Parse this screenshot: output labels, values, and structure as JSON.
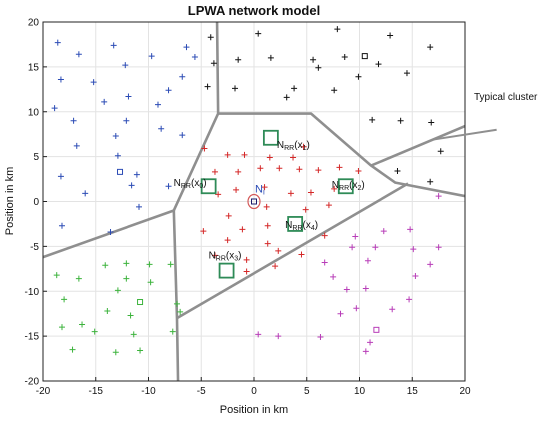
{
  "chart_data": {
    "type": "scatter",
    "title": "LPWA network model",
    "xlabel": "Position in km",
    "ylabel": "Position in km",
    "xlim": [
      -20,
      20
    ],
    "ylim": [
      -20,
      20
    ],
    "xticks": [
      -20,
      -15,
      -10,
      -5,
      0,
      5,
      10,
      15,
      20
    ],
    "yticks": [
      -20,
      -15,
      -10,
      -5,
      0,
      5,
      10,
      15,
      20
    ],
    "grid": true,
    "annotation": "Typical cluster",
    "series": [
      {
        "color": "#2b4bb5",
        "marker": "plus",
        "points": [
          [
            -18.6,
            17.7
          ],
          [
            -16.6,
            16.4
          ],
          [
            -13.3,
            17.4
          ],
          [
            -6.4,
            17.2
          ],
          [
            -18.3,
            13.6
          ],
          [
            -15.2,
            13.3
          ],
          [
            -12.2,
            15.2
          ],
          [
            -9.7,
            16.2
          ],
          [
            -6.8,
            13.9
          ],
          [
            -5.6,
            16.1
          ],
          [
            -14.2,
            11.1
          ],
          [
            -11.9,
            11.7
          ],
          [
            -8.1,
            12.4
          ],
          [
            -18.9,
            10.4
          ],
          [
            -17.1,
            9.0
          ],
          [
            -12.1,
            9.0
          ],
          [
            -9.1,
            10.8
          ],
          [
            -16.8,
            6.2
          ],
          [
            -13.1,
            7.3
          ],
          [
            -8.8,
            8.1
          ],
          [
            -6.8,
            7.4
          ],
          [
            -12.9,
            5.1
          ],
          [
            -16.0,
            0.9
          ],
          [
            -11.6,
            1.8
          ],
          [
            -8.1,
            1.7
          ],
          [
            -10.9,
            -0.6
          ],
          [
            -18.3,
            2.8
          ],
          [
            -18.2,
            -2.7
          ],
          [
            -13.6,
            -3.4
          ],
          [
            -11.1,
            3.0
          ]
        ]
      },
      {
        "color": "#2b4bb5",
        "marker": "square",
        "points": [
          [
            -12.7,
            3.3
          ]
        ]
      },
      {
        "color": "#111111",
        "marker": "plus",
        "points": [
          [
            -4.1,
            18.3
          ],
          [
            0.4,
            18.7
          ],
          [
            7.9,
            19.2
          ],
          [
            12.9,
            18.5
          ],
          [
            -3.8,
            15.4
          ],
          [
            -1.5,
            15.8
          ],
          [
            1.6,
            16.0
          ],
          [
            5.6,
            15.8
          ],
          [
            8.6,
            16.1
          ],
          [
            11.8,
            15.3
          ],
          [
            16.7,
            17.2
          ],
          [
            -4.4,
            12.8
          ],
          [
            -1.8,
            12.6
          ],
          [
            3.8,
            12.6
          ],
          [
            6.1,
            14.9
          ],
          [
            9.9,
            13.9
          ],
          [
            14.5,
            14.3
          ],
          [
            3.1,
            11.6
          ],
          [
            7.6,
            12.4
          ],
          [
            11.2,
            9.1
          ],
          [
            13.9,
            9.0
          ],
          [
            16.8,
            8.8
          ],
          [
            17.7,
            5.6
          ],
          [
            13.6,
            3.4
          ],
          [
            16.7,
            2.2
          ]
        ]
      },
      {
        "color": "#111111",
        "marker": "square",
        "points": [
          [
            10.5,
            16.2
          ]
        ]
      },
      {
        "color": "#d42727",
        "marker": "plus",
        "points": [
          [
            -4.7,
            5.9
          ],
          [
            -2.5,
            5.2
          ],
          [
            -0.9,
            5.2
          ],
          [
            1.5,
            4.9
          ],
          [
            3.7,
            4.9
          ],
          [
            4.7,
            6.1
          ],
          [
            -3.7,
            3.3
          ],
          [
            -1.5,
            3.3
          ],
          [
            0.6,
            3.7
          ],
          [
            2.4,
            3.7
          ],
          [
            4.3,
            3.6
          ],
          [
            6.1,
            3.5
          ],
          [
            8.1,
            3.8
          ],
          [
            9.9,
            3.4
          ],
          [
            -3.4,
            0.8
          ],
          [
            -1.7,
            1.3
          ],
          [
            1.0,
            1.6
          ],
          [
            3.5,
            0.9
          ],
          [
            5.4,
            1.0
          ],
          [
            7.6,
            1.4
          ],
          [
            1.2,
            -0.6
          ],
          [
            4.9,
            -0.9
          ],
          [
            7.1,
            -0.4
          ],
          [
            -2.4,
            -1.6
          ],
          [
            -1.1,
            -3.1
          ],
          [
            1.3,
            -2.7
          ],
          [
            6.7,
            -3.8
          ],
          [
            -4.8,
            -3.3
          ],
          [
            -2.5,
            -4.3
          ],
          [
            1.3,
            -4.7
          ],
          [
            -3.7,
            -6.0
          ],
          [
            -0.7,
            -6.5
          ],
          [
            2.3,
            -5.5
          ],
          [
            4.5,
            -5.9
          ],
          [
            2.0,
            -7.2
          ],
          [
            -0.7,
            -7.8
          ]
        ]
      },
      {
        "color": "#3cb33c",
        "marker": "plus",
        "points": [
          [
            -18.7,
            -8.2
          ],
          [
            -16.6,
            -8.6
          ],
          [
            -14.1,
            -7.1
          ],
          [
            -12.9,
            -9.9
          ],
          [
            -12.1,
            -6.9
          ],
          [
            -12.1,
            -8.6
          ],
          [
            -9.9,
            -7.0
          ],
          [
            -9.8,
            -9.0
          ],
          [
            -7.9,
            -7.0
          ],
          [
            -18.0,
            -10.9
          ],
          [
            -16.3,
            -13.7
          ],
          [
            -13.9,
            -12.2
          ],
          [
            -11.7,
            -12.7
          ],
          [
            -7.3,
            -11.4
          ],
          [
            -7.0,
            -12.3
          ],
          [
            -18.2,
            -14.0
          ],
          [
            -15.1,
            -14.5
          ],
          [
            -11.4,
            -14.8
          ],
          [
            -7.7,
            -14.5
          ],
          [
            -17.2,
            -16.5
          ],
          [
            -13.1,
            -16.8
          ],
          [
            -10.8,
            -16.6
          ]
        ]
      },
      {
        "color": "#3cb33c",
        "marker": "square",
        "points": [
          [
            -10.8,
            -11.2
          ]
        ]
      },
      {
        "color": "#b83db8",
        "marker": "plus",
        "points": [
          [
            17.5,
            0.6
          ],
          [
            9.6,
            -3.9
          ],
          [
            12.3,
            -3.3
          ],
          [
            14.8,
            -3.1
          ],
          [
            9.3,
            -5.1
          ],
          [
            11.5,
            -5.1
          ],
          [
            15.1,
            -5.3
          ],
          [
            17.5,
            -5.1
          ],
          [
            6.7,
            -6.8
          ],
          [
            10.8,
            -6.6
          ],
          [
            16.7,
            -7.0
          ],
          [
            7.5,
            -8.4
          ],
          [
            15.3,
            -8.3
          ],
          [
            8.8,
            -9.8
          ],
          [
            10.6,
            -9.7
          ],
          [
            14.7,
            -10.9
          ],
          [
            9.7,
            -11.9
          ],
          [
            8.2,
            -12.5
          ],
          [
            13.1,
            -12.0
          ],
          [
            0.4,
            -14.8
          ],
          [
            2.3,
            -15.0
          ],
          [
            6.3,
            -15.1
          ],
          [
            11.0,
            -15.7
          ],
          [
            10.6,
            -16.7
          ]
        ]
      },
      {
        "color": "#b83db8",
        "marker": "square",
        "points": [
          [
            11.6,
            -14.3
          ]
        ]
      },
      {
        "color": "#1a1a6a",
        "marker": "square",
        "points": [
          [
            0.0,
            0.0
          ]
        ]
      }
    ],
    "boxed_points": [
      {
        "x": 1.6,
        "y": 7.1,
        "label": "N_RR(x_1)"
      },
      {
        "x": -4.3,
        "y": 1.7,
        "label": "N_RR(x_0)"
      },
      {
        "x": 8.7,
        "y": 1.7,
        "label": "N_RR(x_2)"
      },
      {
        "x": 3.9,
        "y": -2.5,
        "label": "N_RR(x_4)"
      },
      {
        "x": -2.6,
        "y": -7.7,
        "label": "N_RR(x_3)"
      }
    ],
    "center_point": {
      "x": 0.0,
      "y": 0.0,
      "label": "N_i"
    },
    "cell_boundaries": [
      [
        [
          -7.2,
          -20.0
        ],
        [
          -7.3,
          -13.0
        ],
        [
          -7.6,
          -1.0
        ]
      ],
      [
        [
          -20.0,
          -6.2
        ],
        [
          -7.6,
          -1.0
        ]
      ],
      [
        [
          -7.6,
          -1.0
        ],
        [
          -3.4,
          9.8
        ],
        [
          -3.5,
          20.0
        ]
      ],
      [
        [
          -3.4,
          9.8
        ],
        [
          5.4,
          9.8
        ],
        [
          11.1,
          4.0
        ],
        [
          13.4,
          2.1
        ],
        [
          20.0,
          0.6
        ]
      ],
      [
        [
          11.1,
          4.0
        ],
        [
          20.0,
          8.4
        ]
      ],
      [
        [
          -7.3,
          -13.0
        ],
        [
          14.6,
          2.0
        ]
      ]
    ],
    "typical_cluster_line": [
      [
        17.0,
        6.9
      ],
      [
        23.0,
        8.0
      ]
    ]
  }
}
